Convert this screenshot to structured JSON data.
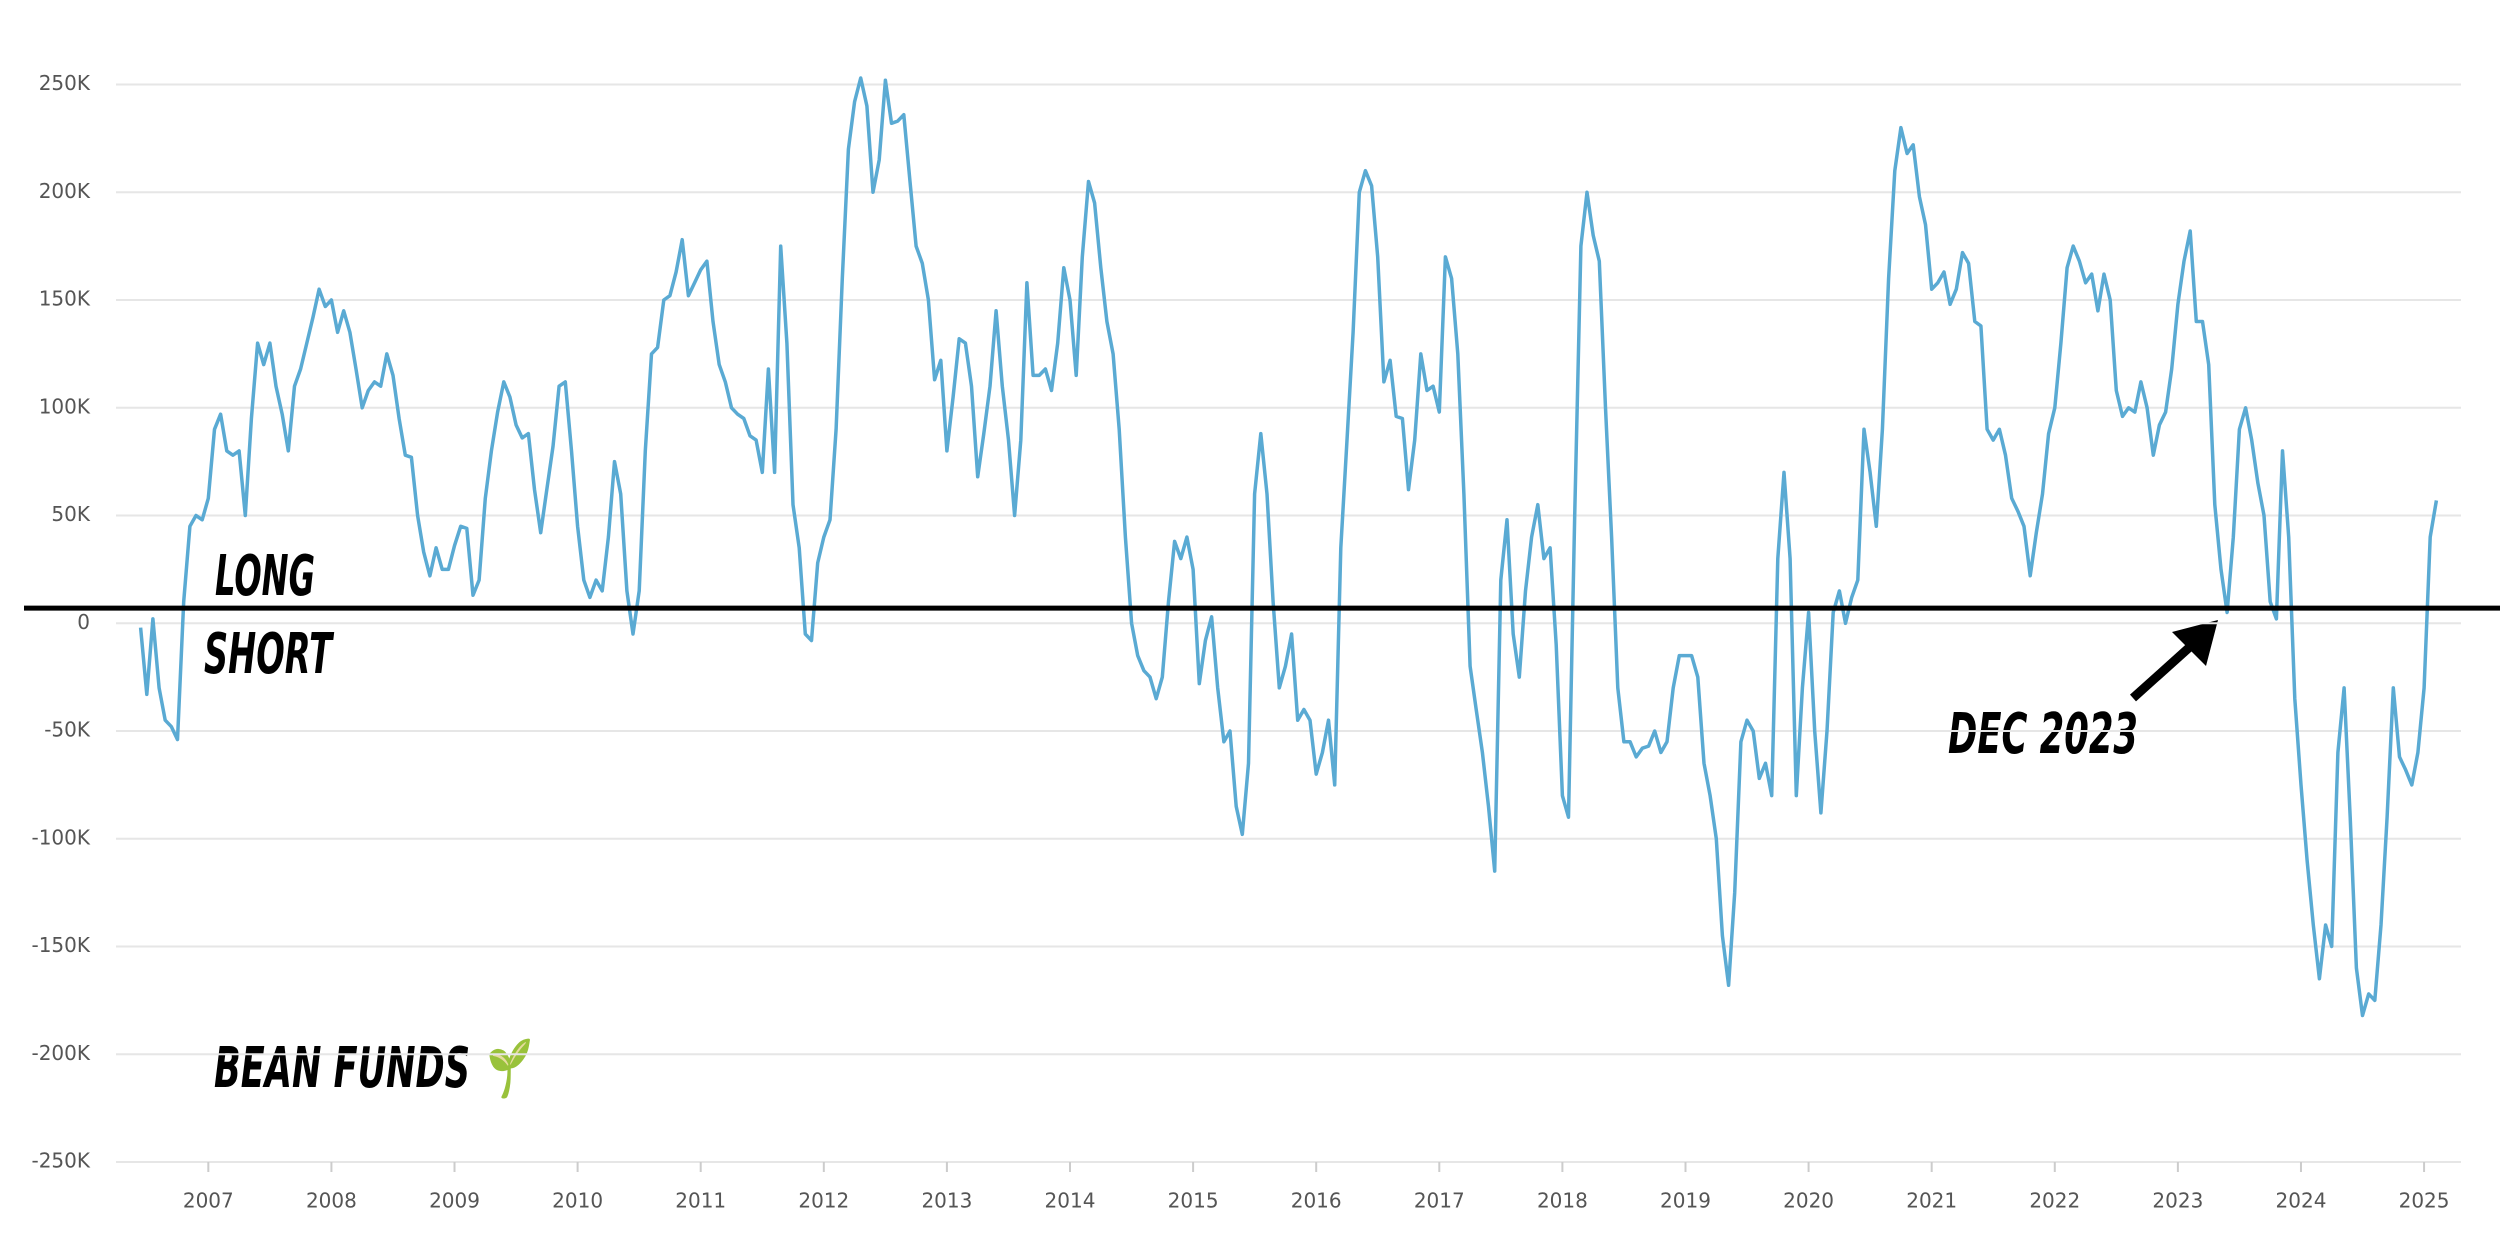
{
  "chart_data": {
    "type": "line",
    "color": "#5aaad3",
    "hline": 7000,
    "hline_color": "#000000",
    "grid": true,
    "annotations": [
      "LONG",
      "SHORT",
      "DEC 2023",
      "BEAN FUNDS 🌱"
    ],
    "xlim": [
      2006.25,
      2025.3
    ],
    "xticks": [
      2007,
      2008,
      2009,
      2010,
      2011,
      2012,
      2013,
      2014,
      2015,
      2016,
      2017,
      2018,
      2019,
      2020,
      2021,
      2022,
      2023,
      2024,
      2025
    ],
    "ylim": [
      -250000,
      250000
    ],
    "yticks": [
      {
        "value": -250000,
        "label": "-250K"
      },
      {
        "value": -200000,
        "label": "-200K"
      },
      {
        "value": -150000,
        "label": "-150K"
      },
      {
        "value": -100000,
        "label": "-100K"
      },
      {
        "value": -50000,
        "label": "-50K"
      },
      0,
      {
        "value": 50000,
        "label": "50K"
      },
      {
        "value": 100000,
        "label": "100K"
      },
      {
        "value": 150000,
        "label": "150K"
      },
      {
        "value": 200000,
        "label": "200K"
      },
      {
        "value": 250000,
        "label": "250K"
      }
    ],
    "x": [
      2006.45,
      2006.5,
      2006.55,
      2006.6,
      2006.65,
      2006.7,
      2006.75,
      2006.8,
      2006.85,
      2006.9,
      2006.95,
      2007,
      2007.05,
      2007.1,
      2007.15,
      2007.2,
      2007.25,
      2007.3,
      2007.35,
      2007.4,
      2007.45,
      2007.5,
      2007.55,
      2007.6,
      2007.65,
      2007.7,
      2007.75,
      2007.8,
      2007.85,
      2007.9,
      2007.95,
      2008,
      2008.05,
      2008.1,
      2008.15,
      2008.2,
      2008.25,
      2008.3,
      2008.35,
      2008.4,
      2008.45,
      2008.5,
      2008.55,
      2008.6,
      2008.65,
      2008.7,
      2008.75,
      2008.8,
      2008.85,
      2008.9,
      2008.95,
      2009,
      2009.05,
      2009.1,
      2009.15,
      2009.2,
      2009.25,
      2009.3,
      2009.35,
      2009.4,
      2009.45,
      2009.5,
      2009.55,
      2009.6,
      2009.65,
      2009.7,
      2009.75,
      2009.8,
      2009.85,
      2009.9,
      2009.95,
      2010,
      2010.05,
      2010.1,
      2010.15,
      2010.2,
      2010.25,
      2010.3,
      2010.35,
      2010.4,
      2010.45,
      2010.5,
      2010.55,
      2010.6,
      2010.65,
      2010.7,
      2010.75,
      2010.8,
      2010.85,
      2010.9,
      2010.95,
      2011,
      2011.05,
      2011.1,
      2011.15,
      2011.2,
      2011.25,
      2011.3,
      2011.35,
      2011.4,
      2011.45,
      2011.5,
      2011.55,
      2011.6,
      2011.65,
      2011.7,
      2011.75,
      2011.8,
      2011.85,
      2011.9,
      2011.95,
      2012,
      2012.05,
      2012.1,
      2012.15,
      2012.2,
      2012.25,
      2012.3,
      2012.35,
      2012.4,
      2012.45,
      2012.5,
      2012.55,
      2012.6,
      2012.65,
      2012.7,
      2012.75,
      2012.8,
      2012.85,
      2012.9,
      2012.95,
      2013,
      2013.05,
      2013.1,
      2013.15,
      2013.2,
      2013.25,
      2013.3,
      2013.35,
      2013.4,
      2013.45,
      2013.5,
      2013.55,
      2013.6,
      2013.65,
      2013.7,
      2013.75,
      2013.8,
      2013.85,
      2013.9,
      2013.95,
      2014,
      2014.05,
      2014.1,
      2014.15,
      2014.2,
      2014.25,
      2014.3,
      2014.35,
      2014.4,
      2014.45,
      2014.5,
      2014.55,
      2014.6,
      2014.65,
      2014.7,
      2014.75,
      2014.8,
      2014.85,
      2014.9,
      2014.95,
      2015,
      2015.05,
      2015.1,
      2015.15,
      2015.2,
      2015.25,
      2015.3,
      2015.35,
      2015.4,
      2015.45,
      2015.5,
      2015.55,
      2015.6,
      2015.65,
      2015.7,
      2015.75,
      2015.8,
      2015.85,
      2015.9,
      2015.95,
      2016,
      2016.05,
      2016.1,
      2016.15,
      2016.2,
      2016.25,
      2016.3,
      2016.35,
      2016.4,
      2016.45,
      2016.5,
      2016.55,
      2016.6,
      2016.65,
      2016.7,
      2016.75,
      2016.8,
      2016.85,
      2016.9,
      2016.95,
      2017,
      2017.05,
      2017.1,
      2017.15,
      2017.2,
      2017.25,
      2017.3,
      2017.35,
      2017.4,
      2017.45,
      2017.5,
      2017.55,
      2017.6,
      2017.65,
      2017.7,
      2017.75,
      2017.8,
      2017.85,
      2017.9,
      2017.95,
      2018,
      2018.05,
      2018.1,
      2018.15,
      2018.2,
      2018.25,
      2018.3,
      2018.35,
      2018.4,
      2018.45,
      2018.5,
      2018.55,
      2018.6,
      2018.65,
      2018.7,
      2018.75,
      2018.8,
      2018.85,
      2018.9,
      2018.95,
      2019,
      2019.05,
      2019.1,
      2019.15,
      2019.2,
      2019.25,
      2019.3,
      2019.35,
      2019.4,
      2019.45,
      2019.5,
      2019.55,
      2019.6,
      2019.65,
      2019.7,
      2019.75,
      2019.8,
      2019.85,
      2019.9,
      2019.95,
      2020,
      2020.05,
      2020.1,
      2020.15,
      2020.2,
      2020.25,
      2020.3,
      2020.35,
      2020.4,
      2020.45,
      2020.5,
      2020.55,
      2020.6,
      2020.65,
      2020.7,
      2020.75,
      2020.8,
      2020.85,
      2020.9,
      2020.95,
      2021,
      2021.05,
      2021.1,
      2021.15,
      2021.2,
      2021.25,
      2021.3,
      2021.35,
      2021.4,
      2021.45,
      2021.5,
      2021.55,
      2021.6,
      2021.65,
      2021.7,
      2021.75,
      2021.8,
      2021.85,
      2021.9,
      2021.95,
      2022,
      2022.05,
      2022.1,
      2022.15,
      2022.2,
      2022.25,
      2022.3,
      2022.35,
      2022.4,
      2022.45,
      2022.5,
      2022.55,
      2022.6,
      2022.65,
      2022.7,
      2022.75,
      2022.8,
      2022.85,
      2022.9,
      2022.95,
      2023,
      2023.05,
      2023.1,
      2023.15,
      2023.2,
      2023.25,
      2023.3,
      2023.35,
      2023.4,
      2023.45,
      2023.5,
      2023.55,
      2023.6,
      2023.65,
      2023.7,
      2023.75,
      2023.8,
      2023.85,
      2023.9,
      2023.95,
      2024,
      2024.05,
      2024.1,
      2024.15,
      2024.2,
      2024.25,
      2024.3,
      2024.35,
      2024.4,
      2024.45,
      2024.5,
      2024.55,
      2024.6,
      2024.65,
      2024.7,
      2024.75,
      2024.8,
      2024.85,
      2024.9,
      2024.95,
      2025,
      2025.05,
      2025.1
    ],
    "values": [
      -2000,
      -33000,
      2000,
      -30000,
      -45000,
      -48000,
      -54000,
      10000,
      45000,
      50000,
      48000,
      58000,
      90000,
      97000,
      80000,
      78000,
      80000,
      50000,
      95000,
      130000,
      120000,
      130000,
      110000,
      97000,
      80000,
      110000,
      118000,
      130000,
      142000,
      155000,
      147000,
      150000,
      135000,
      145000,
      135000,
      118000,
      100000,
      108000,
      112000,
      110000,
      125000,
      115000,
      95000,
      78000,
      77000,
      50000,
      33000,
      22000,
      35000,
      25000,
      25000,
      36000,
      45000,
      44000,
      13000,
      20000,
      58000,
      80000,
      98000,
      112000,
      105000,
      92000,
      86000,
      88000,
      62000,
      42000,
      62000,
      82000,
      110000,
      112000,
      80000,
      45000,
      20000,
      12000,
      20000,
      15000,
      40000,
      75000,
      60000,
      15000,
      -5000,
      15000,
      80000,
      125000,
      128000,
      150000,
      152000,
      163000,
      178000,
      152000,
      158000,
      164000,
      168000,
      140000,
      120000,
      112000,
      100000,
      97000,
      95000,
      87000,
      85000,
      70000,
      118000,
      70000,
      175000,
      130000,
      55000,
      35000,
      -5000,
      -8000,
      28000,
      40000,
      48000,
      90000,
      160000,
      220000,
      242000,
      253000,
      240000,
      200000,
      215000,
      252000,
      232000,
      233000,
      236000,
      205000,
      175000,
      167000,
      150000,
      113000,
      122000,
      80000,
      105000,
      132000,
      130000,
      110000,
      68000,
      88000,
      110000,
      145000,
      110000,
      85000,
      50000,
      85000,
      158000,
      115000,
      115000,
      118000,
      108000,
      130000,
      165000,
      150000,
      115000,
      170000,
      205000,
      195000,
      165000,
      140000,
      125000,
      90000,
      40000,
      0,
      -15000,
      -22000,
      -25000,
      -35000,
      -25000,
      10000,
      38000,
      30000,
      40000,
      25000,
      -28000,
      -8000,
      3000,
      -30000,
      -55000,
      -50000,
      -85000,
      -98000,
      -65000,
      60000,
      88000,
      60000,
      10000,
      -30000,
      -20000,
      -5000,
      -45000,
      -40000,
      -45000,
      -70000,
      -60000,
      -45000,
      -75000,
      35000,
      85000,
      135000,
      200000,
      210000,
      203000,
      170000,
      112000,
      122000,
      96000,
      95000,
      62000,
      85000,
      125000,
      108000,
      110000,
      98000,
      170000,
      160000,
      125000,
      60000,
      -20000,
      -40000,
      -60000,
      -85000,
      -115000,
      20000,
      48000,
      -5000,
      -25000,
      15000,
      40000,
      55000,
      30000,
      35000,
      -10000,
      -80000,
      -90000,
      50000,
      175000,
      200000,
      180000,
      168000,
      100000,
      40000,
      -30000,
      -55000,
      -55000,
      -62000,
      -58000,
      -57000,
      -50000,
      -60000,
      -55000,
      -30000,
      -15000,
      -15000,
      -15000,
      -25000,
      -65000,
      -80000,
      -100000,
      -145000,
      -168000,
      -125000,
      -55000,
      -45000,
      -50000,
      -72000,
      -65000,
      -80000,
      30000,
      70000,
      30000,
      -80000,
      -30000,
      5000,
      -50000,
      -88000,
      -50000,
      5000,
      15000,
      0,
      12000,
      20000,
      90000,
      70000,
      45000,
      90000,
      160000,
      210000,
      230000,
      218000,
      222000,
      198000,
      185000,
      155000,
      158000,
      163000,
      148000,
      155000,
      172000,
      167000,
      140000,
      138000,
      90000,
      85000,
      90000,
      78000,
      58000,
      52000,
      45000,
      22000,
      42000,
      60000,
      88000,
      100000,
      130000,
      165000,
      175000,
      168000,
      158000,
      162000,
      145000,
      162000,
      150000,
      108000,
      96000,
      100000,
      98000,
      112000,
      100000,
      78000,
      92000,
      98000,
      118000,
      148000,
      168000,
      182000,
      140000,
      140000,
      120000,
      55000,
      25000,
      5000,
      40000,
      90000,
      100000,
      85000,
      65000,
      50000,
      10000,
      2000,
      80000,
      40000,
      -35000,
      -75000,
      -110000,
      -140000,
      -165000,
      -140000,
      -150000,
      -60000,
      -30000,
      -90000,
      -160000,
      -182000,
      -172000,
      -175000,
      -140000,
      -90000,
      -30000,
      -62000,
      -68000,
      -75000,
      -60000,
      -30000,
      40000,
      57000
    ]
  }
}
